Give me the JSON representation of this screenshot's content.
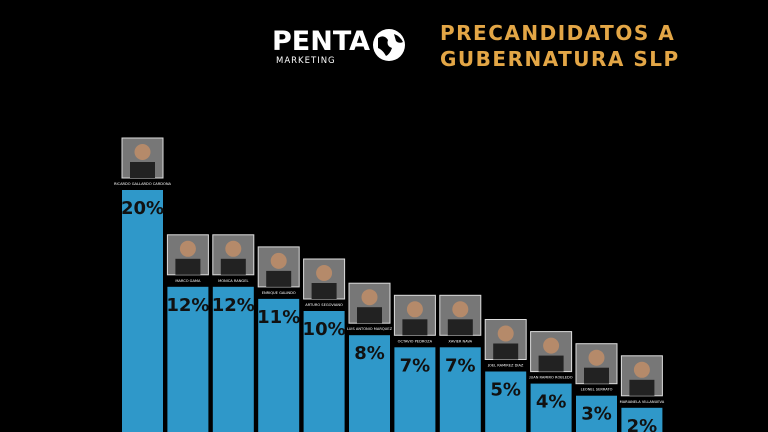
{
  "chart_data": {
    "type": "bar",
    "logo": {
      "name": "PENTA",
      "subtitle": "MARKETING"
    },
    "title_lines": [
      "PRECANDIDATOS A",
      "GUBERNATURA SLP"
    ],
    "categories": [
      "RICARDO GALLARDO CARDONA",
      "MARCO GAMA",
      "MONICA RANGEL",
      "ENRIQUE GALINDO",
      "ARTURO SEGOVIANO",
      "LUIS ANTONIO MARQUEZ",
      "OCTAVIO PEDROZA",
      "XAVIER NAVA",
      "JOEL RAMIREZ DIAZ",
      "JUAN RAMIRO ROBLEDO",
      "LEONEL SERRATO",
      "MARIANELA VILLANUEVA"
    ],
    "values": [
      20,
      12,
      12,
      11,
      10,
      8,
      7,
      7,
      5,
      4,
      3,
      2
    ],
    "value_labels": [
      "20%",
      "12%",
      "12%",
      "11%",
      "10%",
      "8%",
      "7%",
      "7%",
      "5%",
      "4%",
      "3%",
      "2%"
    ],
    "color": "#2f98c9"
  }
}
